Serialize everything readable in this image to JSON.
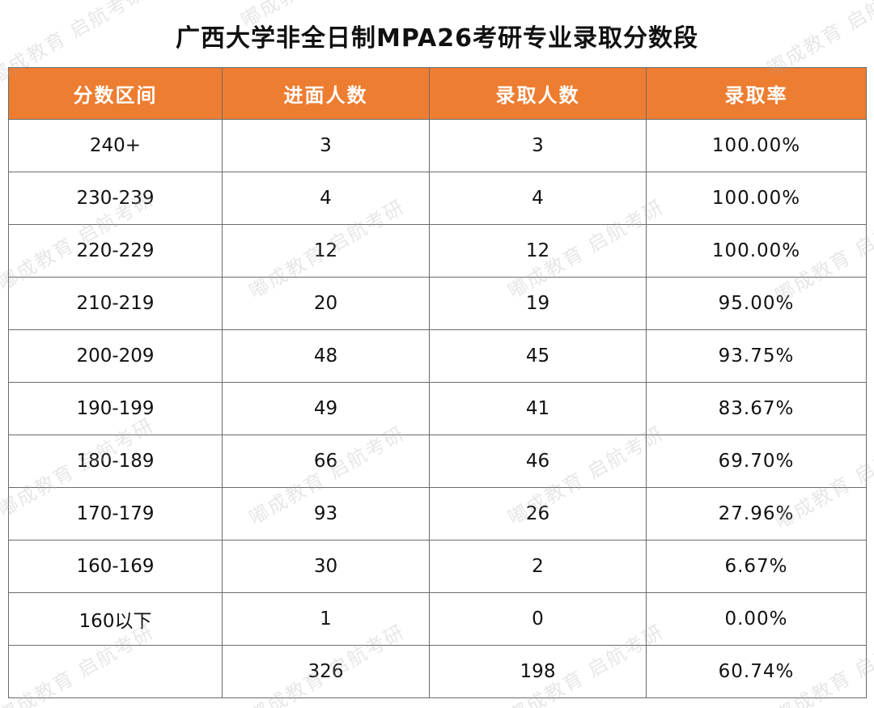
{
  "title": "广西大学非全日制MPA26考研专业录取分数段",
  "watermark": "嘟成教育 启航考研",
  "columns": [
    "分数区间",
    "进面人数",
    "录取人数",
    "录取率"
  ],
  "rows": [
    {
      "range": "240+",
      "interview": "3",
      "admitted": "3",
      "rate": "100.00%"
    },
    {
      "range": "230-239",
      "interview": "4",
      "admitted": "4",
      "rate": "100.00%"
    },
    {
      "range": "220-229",
      "interview": "12",
      "admitted": "12",
      "rate": "100.00%"
    },
    {
      "range": "210-219",
      "interview": "20",
      "admitted": "19",
      "rate": "95.00%"
    },
    {
      "range": "200-209",
      "interview": "48",
      "admitted": "45",
      "rate": "93.75%"
    },
    {
      "range": "190-199",
      "interview": "49",
      "admitted": "41",
      "rate": "83.67%"
    },
    {
      "range": "180-189",
      "interview": "66",
      "admitted": "46",
      "rate": "69.70%"
    },
    {
      "range": "170-179",
      "interview": "93",
      "admitted": "26",
      "rate": "27.96%"
    },
    {
      "range": "160-169",
      "interview": "30",
      "admitted": "2",
      "rate": "6.67%"
    },
    {
      "range": "160以下",
      "interview": "1",
      "admitted": "0",
      "rate": "0.00%"
    },
    {
      "range": "",
      "interview": "326",
      "admitted": "198",
      "rate": "60.74%"
    }
  ],
  "colors": {
    "header_bg": "#ed7d31",
    "header_text": "#ffffff",
    "border": "#6b6b6b"
  }
}
